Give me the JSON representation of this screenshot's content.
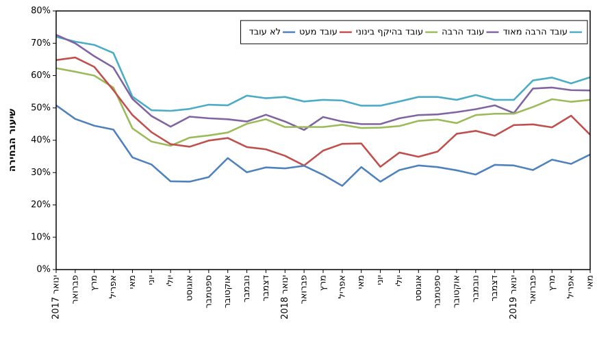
{
  "chart_data": {
    "type": "line",
    "y_axis_label": "שיעור הבחירה",
    "categories": [
      "ינואר 2017",
      "פברואר",
      "מרץ",
      "אפריל",
      "מאי",
      "יוני",
      "יולי",
      "אוגוסט",
      "ספטמבר",
      "אוקטובר",
      "נובמבר",
      "דצמבר",
      "ינואר 2018",
      "פברואר",
      "מרץ",
      "אפריל",
      "מאי",
      "יוני",
      "יולי",
      "אוגוסט",
      "ספטמבר",
      "אוקטובר",
      "נובמבר",
      "דצמבר",
      "ינואר 2019",
      "פברואר",
      "מרץ",
      "אפריל",
      "מאי"
    ],
    "series": [
      {
        "name": "עובד הרבה מאוד",
        "color": "#4bacc6",
        "values": [
          72,
          70.5,
          69.5,
          67,
          53.5,
          49.3,
          49.1,
          49.7,
          51,
          50.8,
          53.8,
          53,
          53.4,
          52,
          52.5,
          52.3,
          50.7,
          50.7,
          52,
          53.4,
          53.4,
          52.5,
          54,
          52.5,
          52.5,
          58.5,
          59.4,
          57.6,
          59.5
        ]
      },
      {
        "name": "עובד הרבה",
        "color": "#8064a2",
        "values": [
          72.6,
          70,
          66,
          62.5,
          52.8,
          47.5,
          44.2,
          47.3,
          46.8,
          46.5,
          45.8,
          47.9,
          45.8,
          43.2,
          47.2,
          45.8,
          45,
          45,
          46.8,
          47.8,
          48,
          48.7,
          49.6,
          50.8,
          48.4,
          56,
          56.3,
          55.5,
          55.4
        ]
      },
      {
        "name": "עובד בהיקף בינוני",
        "color": "#9bbb59",
        "values": [
          62.3,
          61.2,
          60,
          56.3,
          43.7,
          39.6,
          38.3,
          40.8,
          41.5,
          42.4,
          45.1,
          46.5,
          44.1,
          44.1,
          44.1,
          44.8,
          43.8,
          43.9,
          44.4,
          46,
          46.4,
          45.3,
          47.8,
          48.2,
          48.2,
          50.3,
          52.7,
          51.9,
          52.5
        ]
      },
      {
        "name": "עובד מעט",
        "color": "#c0504d",
        "values": [
          64.8,
          65.6,
          62.7,
          55.5,
          47.8,
          42.5,
          38.8,
          38,
          39.9,
          40.7,
          37.9,
          37.2,
          35.2,
          32.2,
          36.8,
          38.9,
          39,
          31.8,
          36.2,
          34.9,
          36.5,
          42,
          42.9,
          41.4,
          44.7,
          44.9,
          44,
          47.6,
          41.7
        ]
      },
      {
        "name": "לא עובד",
        "color": "#4f81bd",
        "values": [
          50.8,
          46.6,
          44.5,
          43.3,
          34.7,
          32.5,
          27.3,
          27.2,
          28.6,
          34.5,
          30.1,
          31.6,
          31.3,
          32.1,
          29.3,
          25.9,
          31.7,
          27.2,
          30.8,
          32.2,
          31.7,
          30.7,
          29.4,
          32.4,
          32.2,
          30.8,
          34,
          32.7,
          35.6
        ]
      }
    ],
    "ylim": [
      0,
      80
    ],
    "yticks": [
      {
        "value": 0,
        "label": "0%"
      },
      {
        "value": 10,
        "label": "10%"
      },
      {
        "value": 20,
        "label": "20%"
      },
      {
        "value": 30,
        "label": "30%"
      },
      {
        "value": 40,
        "label": "40%"
      },
      {
        "value": 50,
        "label": "50%"
      },
      {
        "value": 60,
        "label": "60%"
      },
      {
        "value": 70,
        "label": "70%"
      },
      {
        "value": 80,
        "label": "80%"
      }
    ],
    "grid": false,
    "legend": "top-right"
  }
}
